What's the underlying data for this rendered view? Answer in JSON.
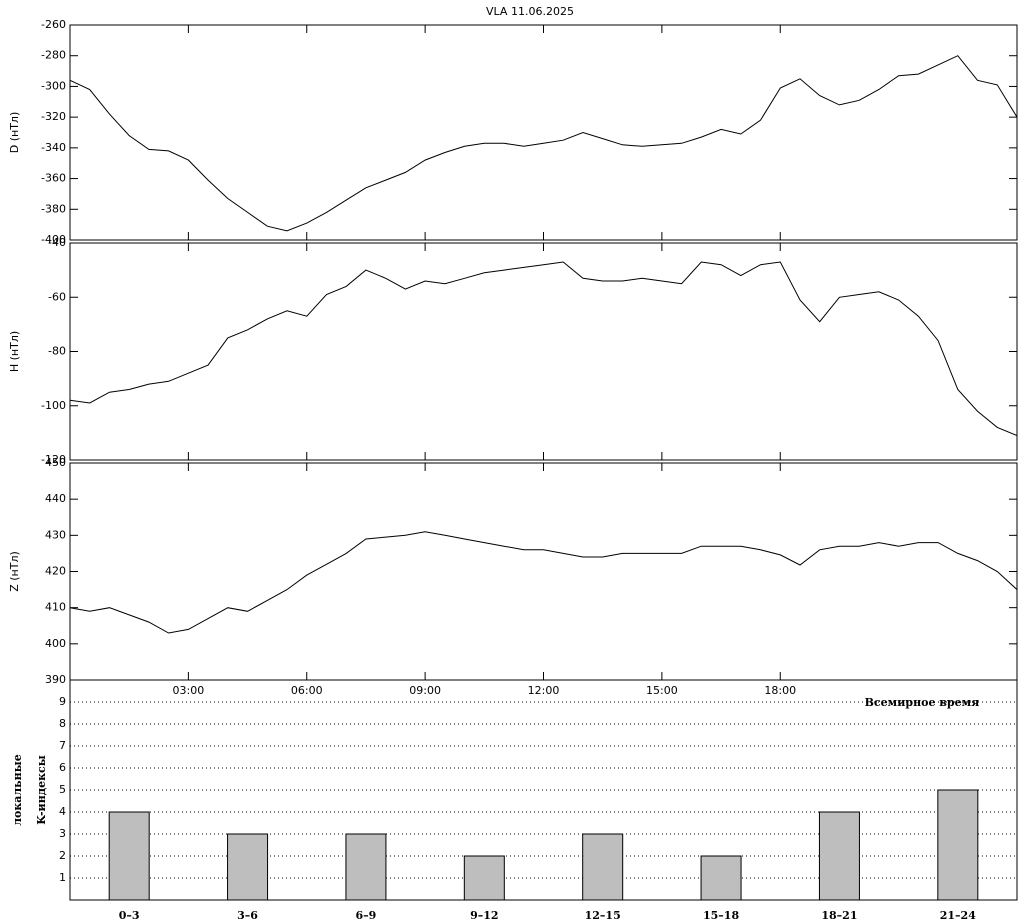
{
  "chart_data": [
    {
      "type": "line",
      "title": "VLA   11.06.2025",
      "ylabel": "D (нТл)",
      "color": "#000000",
      "x": [
        0,
        0.5,
        1,
        1.5,
        2,
        2.5,
        3,
        3.5,
        4,
        4.5,
        5,
        5.5,
        6,
        6.5,
        7,
        7.5,
        8,
        8.5,
        9,
        9.5,
        10,
        10.5,
        11,
        11.5,
        12,
        12.5,
        13,
        13.5,
        14,
        14.5,
        15,
        15.5,
        16,
        16.5,
        17,
        17.5,
        18,
        18.5,
        19,
        19.5,
        20,
        20.5,
        21,
        21.5,
        22,
        22.5,
        23,
        23.5,
        24
      ],
      "values": [
        -296,
        -302,
        -318,
        -332,
        -341,
        -342,
        -348,
        -361,
        -373,
        -382,
        -391,
        -394,
        -389,
        -382,
        -374,
        -366,
        -361,
        -356,
        -348,
        -343,
        -339,
        -337,
        -337,
        -339,
        -337,
        -335,
        -330,
        -334,
        -338,
        -339,
        -338,
        -337,
        -333,
        -328,
        -331,
        -322,
        -301,
        -295,
        -306,
        -312,
        -309,
        -302,
        -293,
        -292,
        -286,
        -280,
        -296,
        -299,
        -320
      ],
      "xlim": [
        0,
        24
      ],
      "ylim": [
        -400,
        -260
      ],
      "yticks": [
        -400,
        -380,
        -360,
        -340,
        -320,
        -300,
        -280,
        -260
      ]
    },
    {
      "type": "line",
      "ylabel": "H (нТл)",
      "color": "#000000",
      "x": [
        0,
        0.5,
        1,
        1.5,
        2,
        2.5,
        3,
        3.5,
        4,
        4.5,
        5,
        5.5,
        6,
        6.5,
        7,
        7.5,
        8,
        8.5,
        9,
        9.5,
        10,
        10.5,
        11,
        11.5,
        12,
        12.5,
        13,
        13.5,
        14,
        14.5,
        15,
        15.5,
        16,
        16.5,
        17,
        17.5,
        18,
        18.5,
        19,
        19.5,
        20,
        20.5,
        21,
        21.5,
        22,
        22.5,
        23,
        23.5,
        24
      ],
      "values": [
        -98,
        -99,
        -95,
        -94,
        -92,
        -91,
        -88,
        -85,
        -75,
        -72,
        -68,
        -65,
        -67,
        -59,
        -56,
        -50,
        -53,
        -57,
        -54,
        -55,
        -53,
        -51,
        -50,
        -49,
        -48,
        -47,
        -53,
        -54,
        -54,
        -53,
        -54,
        -55,
        -47,
        -48,
        -52,
        -48,
        -47,
        -61,
        -69,
        -60,
        -59,
        -58,
        -61,
        -67,
        -76,
        -94,
        -102,
        -108,
        -111
      ],
      "xlim": [
        0,
        24
      ],
      "ylim": [
        -120,
        -40
      ],
      "yticks": [
        -120,
        -100,
        -80,
        -60,
        -40
      ]
    },
    {
      "type": "line",
      "ylabel": "Z (нТл)",
      "xlabel": "Всемирное время",
      "color": "#000000",
      "x": [
        0,
        0.5,
        1,
        1.5,
        2,
        2.5,
        3,
        3.5,
        4,
        4.5,
        5,
        5.5,
        6,
        6.5,
        7,
        7.5,
        8,
        8.5,
        9,
        9.5,
        10,
        10.5,
        11,
        11.5,
        12,
        12.5,
        13,
        13.5,
        14,
        14.5,
        15,
        15.5,
        16,
        16.5,
        17,
        17.5,
        18,
        18.5,
        19,
        19.5,
        20,
        20.5,
        21,
        21.5,
        22,
        22.5,
        23,
        23.5,
        24
      ],
      "values": [
        410,
        409,
        410,
        408,
        406,
        403,
        404,
        407,
        410,
        409,
        412,
        415,
        419,
        422,
        425,
        429,
        429.5,
        430,
        431,
        430,
        429,
        428,
        427,
        426,
        426,
        425,
        424,
        424,
        425,
        425,
        425,
        425,
        427,
        427,
        427,
        426,
        424.6,
        421.8,
        426,
        427,
        427,
        428,
        427,
        428,
        428,
        425,
        423,
        420,
        415
      ],
      "xlim": [
        0,
        24
      ],
      "ylim": [
        390,
        450
      ],
      "yticks": [
        390,
        400,
        410,
        420,
        430,
        440,
        450
      ],
      "xticks": [
        {
          "value": 3,
          "label": "03:00"
        },
        {
          "value": 6,
          "label": "06:00"
        },
        {
          "value": 9,
          "label": "09:00"
        },
        {
          "value": 12,
          "label": "12:00"
        },
        {
          "value": 15,
          "label": "15:00"
        },
        {
          "value": 18,
          "label": "18:00"
        }
      ]
    },
    {
      "type": "bar",
      "ylabel": [
        "локальные",
        "K-индексы"
      ],
      "color": "#bebebe",
      "grid": true,
      "categories": [
        "0–3",
        "3–6",
        "6–9",
        "9–12",
        "12–15",
        "15–18",
        "18–21",
        "21–24"
      ],
      "values": [
        4,
        3,
        3,
        2,
        3,
        2,
        4,
        5
      ],
      "ylim": [
        0,
        10
      ],
      "yticks": [
        1,
        2,
        3,
        4,
        5,
        6,
        7,
        8,
        9
      ]
    }
  ]
}
